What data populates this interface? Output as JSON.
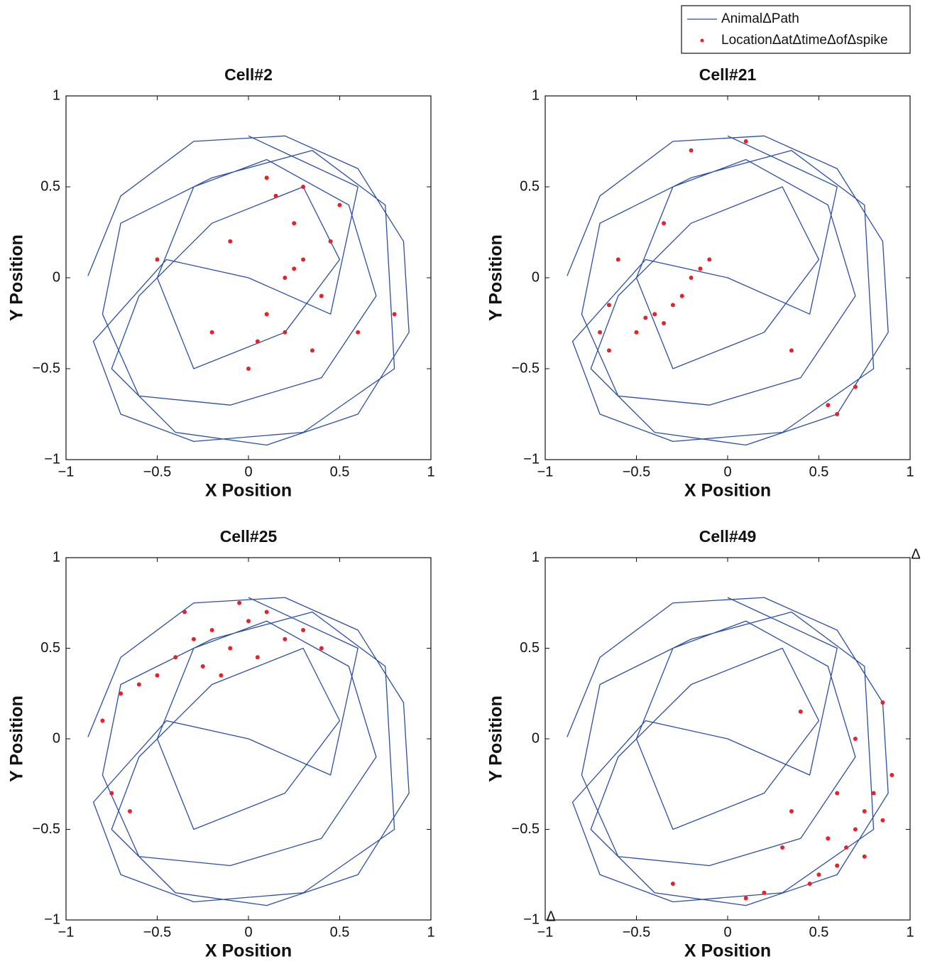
{
  "chart_data": [
    {
      "type": "scatter",
      "title": "Cell#2",
      "x_label": "X Position",
      "y_label": "Y Position",
      "xlim": [
        -1,
        1
      ],
      "ylim": [
        -1,
        1
      ],
      "xticks": [
        {
          "value": -1,
          "label": "−1"
        },
        {
          "value": -0.5,
          "label": "−0.5"
        },
        0,
        0.5,
        1
      ],
      "yticks": [
        {
          "value": -1,
          "label": "−1"
        },
        {
          "value": -0.5,
          "label": "−0.5"
        },
        0,
        0.5,
        1
      ],
      "series": [
        {
          "name": "AnimalΔPath",
          "color": "#2b4ea8",
          "style": "line",
          "x": [
            -0.88,
            -0.7,
            -0.3,
            0.2,
            0.6,
            0.85,
            0.88,
            0.6,
            0.1,
            -0.4,
            -0.75,
            -0.6,
            -0.2,
            0.3,
            0.5,
            0.2,
            -0.3,
            -0.5,
            -0.3,
            0.1,
            0.55,
            0.7,
            0.4,
            -0.1,
            -0.6,
            -0.8,
            -0.7,
            -0.2,
            0.35,
            0.75,
            0.8,
            0.3,
            -0.3,
            -0.7,
            -0.85,
            -0.45,
            0.0,
            0.45,
            0.6,
            0.0
          ],
          "y": [
            0.01,
            0.45,
            0.75,
            0.78,
            0.6,
            0.2,
            -0.3,
            -0.75,
            -0.92,
            -0.85,
            -0.5,
            -0.1,
            0.3,
            0.5,
            0.1,
            -0.3,
            -0.5,
            0.0,
            0.5,
            0.65,
            0.4,
            -0.1,
            -0.55,
            -0.7,
            -0.65,
            -0.2,
            0.3,
            0.55,
            0.7,
            0.4,
            -0.5,
            -0.85,
            -0.9,
            -0.75,
            -0.35,
            0.1,
            0.0,
            -0.2,
            0.5,
            0.78
          ]
        },
        {
          "name": "LocationΔatΔtimeΔofΔspike",
          "color": "#e8202a",
          "style": "points",
          "x": [
            0.2,
            0.3,
            0.1,
            0.25,
            0.4,
            0.15,
            0.05,
            0.35,
            0.2,
            -0.1,
            0.5,
            0.3,
            0.0,
            0.45,
            0.25,
            -0.2,
            0.1,
            0.6,
            -0.5,
            0.8
          ],
          "y": [
            0.0,
            0.1,
            -0.2,
            0.3,
            -0.1,
            0.45,
            -0.35,
            -0.4,
            -0.3,
            0.2,
            0.4,
            0.5,
            -0.5,
            0.2,
            0.05,
            -0.3,
            0.55,
            -0.3,
            0.1,
            -0.2
          ]
        }
      ]
    },
    {
      "type": "scatter",
      "title": "Cell#21",
      "x_label": "X Position",
      "y_label": "Y Position",
      "xlim": [
        -1,
        1
      ],
      "ylim": [
        -1,
        1
      ],
      "xticks": [
        {
          "value": -1,
          "label": "−1"
        },
        {
          "value": -0.5,
          "label": "−0.5"
        },
        0,
        0.5,
        1
      ],
      "yticks": [
        {
          "value": -1,
          "label": "−1"
        },
        {
          "value": -0.5,
          "label": "−0.5"
        },
        0,
        0.5,
        1
      ],
      "series": [
        {
          "color": "#2b4ea8",
          "style": "line",
          "x": [
            -0.88,
            -0.7,
            -0.3,
            0.2,
            0.6,
            0.85,
            0.88,
            0.6,
            0.1,
            -0.4,
            -0.75,
            -0.6,
            -0.2,
            0.3,
            0.5,
            0.2,
            -0.3,
            -0.5,
            -0.3,
            0.1,
            0.55,
            0.7,
            0.4,
            -0.1,
            -0.6,
            -0.8,
            -0.7,
            -0.2,
            0.35,
            0.75,
            0.8,
            0.3,
            -0.3,
            -0.7,
            -0.85,
            -0.45,
            0.0,
            0.45,
            0.6,
            0.0
          ],
          "y": [
            0.01,
            0.45,
            0.75,
            0.78,
            0.6,
            0.2,
            -0.3,
            -0.75,
            -0.92,
            -0.85,
            -0.5,
            -0.1,
            0.3,
            0.5,
            0.1,
            -0.3,
            -0.5,
            0.0,
            0.5,
            0.65,
            0.4,
            -0.1,
            -0.55,
            -0.7,
            -0.65,
            -0.2,
            0.3,
            0.55,
            0.7,
            0.4,
            -0.5,
            -0.85,
            -0.9,
            -0.75,
            -0.35,
            0.1,
            0.0,
            -0.2,
            0.5,
            0.78
          ]
        },
        {
          "color": "#e8202a",
          "style": "points",
          "x": [
            -0.4,
            -0.35,
            -0.3,
            -0.45,
            -0.5,
            -0.25,
            -0.2,
            -0.15,
            -0.65,
            -0.7,
            -0.6,
            -0.65,
            -0.1,
            -0.35,
            0.6,
            0.55,
            0.7,
            -0.2,
            0.1,
            0.35
          ],
          "y": [
            -0.2,
            -0.25,
            -0.15,
            -0.22,
            -0.3,
            -0.1,
            0.0,
            0.05,
            -0.15,
            -0.3,
            0.1,
            -0.4,
            0.1,
            0.3,
            -0.75,
            -0.7,
            -0.6,
            0.7,
            0.75,
            -0.4
          ]
        }
      ]
    },
    {
      "type": "scatter",
      "title": "Cell#25",
      "x_label": "X Position",
      "y_label": "Y Position",
      "xlim": [
        -1,
        1
      ],
      "ylim": [
        -1,
        1
      ],
      "xticks": [
        {
          "value": -1,
          "label": "−1"
        },
        {
          "value": -0.5,
          "label": "−0.5"
        },
        0,
        0.5,
        1
      ],
      "yticks": [
        {
          "value": -1,
          "label": "−1"
        },
        {
          "value": -0.5,
          "label": "−0.5"
        },
        0,
        0.5,
        1
      ],
      "series": [
        {
          "color": "#2b4ea8",
          "style": "line",
          "x": [
            -0.88,
            -0.7,
            -0.3,
            0.2,
            0.6,
            0.85,
            0.88,
            0.6,
            0.1,
            -0.4,
            -0.75,
            -0.6,
            -0.2,
            0.3,
            0.5,
            0.2,
            -0.3,
            -0.5,
            -0.3,
            0.1,
            0.55,
            0.7,
            0.4,
            -0.1,
            -0.6,
            -0.8,
            -0.7,
            -0.2,
            0.35,
            0.75,
            0.8,
            0.3,
            -0.3,
            -0.7,
            -0.85,
            -0.45,
            0.0,
            0.45,
            0.6,
            0.0
          ],
          "y": [
            0.01,
            0.45,
            0.75,
            0.78,
            0.6,
            0.2,
            -0.3,
            -0.75,
            -0.92,
            -0.85,
            -0.5,
            -0.1,
            0.3,
            0.5,
            0.1,
            -0.3,
            -0.5,
            0.0,
            0.5,
            0.65,
            0.4,
            -0.1,
            -0.55,
            -0.7,
            -0.65,
            -0.2,
            0.3,
            0.55,
            0.7,
            0.4,
            -0.5,
            -0.85,
            -0.9,
            -0.75,
            -0.35,
            0.1,
            0.0,
            -0.2,
            0.5,
            0.78
          ]
        },
        {
          "color": "#e8202a",
          "style": "points",
          "x": [
            -0.3,
            -0.2,
            -0.1,
            0.0,
            0.1,
            0.2,
            -0.25,
            -0.15,
            0.05,
            -0.4,
            -0.5,
            -0.6,
            -0.35,
            -0.05,
            0.3,
            -0.7,
            -0.75,
            -0.65,
            0.4,
            -0.8
          ],
          "y": [
            0.55,
            0.6,
            0.5,
            0.65,
            0.7,
            0.55,
            0.4,
            0.35,
            0.45,
            0.45,
            0.35,
            0.3,
            0.7,
            0.75,
            0.6,
            0.25,
            -0.3,
            -0.4,
            0.5,
            0.1
          ]
        }
      ]
    },
    {
      "type": "scatter",
      "title": "Cell#49",
      "x_label": "X Position",
      "y_label": "Y Position",
      "xlim": [
        -1,
        1
      ],
      "ylim": [
        -1,
        1
      ],
      "xticks": [
        {
          "value": -1,
          "label": "−1"
        },
        {
          "value": -0.5,
          "label": "−0.5"
        },
        0,
        0.5,
        1
      ],
      "yticks": [
        {
          "value": -1,
          "label": "−1"
        },
        {
          "value": -0.5,
          "label": "−0.5"
        },
        0,
        0.5,
        1
      ],
      "annotations": [
        {
          "text": "Δ",
          "x": 1,
          "y": 1
        },
        {
          "text": "Δ",
          "x": -1,
          "y": -1
        }
      ],
      "series": [
        {
          "color": "#2b4ea8",
          "style": "line",
          "x": [
            -0.88,
            -0.7,
            -0.3,
            0.2,
            0.6,
            0.85,
            0.88,
            0.6,
            0.1,
            -0.4,
            -0.75,
            -0.6,
            -0.2,
            0.3,
            0.5,
            0.2,
            -0.3,
            -0.5,
            -0.3,
            0.1,
            0.55,
            0.7,
            0.4,
            -0.1,
            -0.6,
            -0.8,
            -0.7,
            -0.2,
            0.35,
            0.75,
            0.8,
            0.3,
            -0.3,
            -0.7,
            -0.85,
            -0.45,
            0.0,
            0.45,
            0.6,
            0.0
          ],
          "y": [
            0.01,
            0.45,
            0.75,
            0.78,
            0.6,
            0.2,
            -0.3,
            -0.75,
            -0.92,
            -0.85,
            -0.5,
            -0.1,
            0.3,
            0.5,
            0.1,
            -0.3,
            -0.5,
            0.0,
            0.5,
            0.65,
            0.4,
            -0.1,
            -0.55,
            -0.7,
            -0.65,
            -0.2,
            0.3,
            0.55,
            0.7,
            0.4,
            -0.5,
            -0.85,
            -0.9,
            -0.75,
            -0.35,
            0.1,
            0.0,
            -0.2,
            0.5,
            0.78
          ]
        },
        {
          "color": "#e8202a",
          "style": "points",
          "x": [
            0.7,
            0.75,
            0.8,
            0.85,
            0.6,
            0.65,
            0.5,
            0.55,
            0.9,
            0.45,
            0.3,
            0.2,
            0.4,
            0.85,
            0.7,
            0.6,
            0.1,
            -0.3,
            0.75,
            0.35
          ],
          "y": [
            -0.5,
            -0.4,
            -0.3,
            -0.45,
            -0.7,
            -0.6,
            -0.75,
            -0.55,
            -0.2,
            -0.8,
            -0.6,
            -0.85,
            0.15,
            0.2,
            0.0,
            -0.3,
            -0.88,
            -0.8,
            -0.65,
            -0.4
          ]
        }
      ]
    }
  ]
}
